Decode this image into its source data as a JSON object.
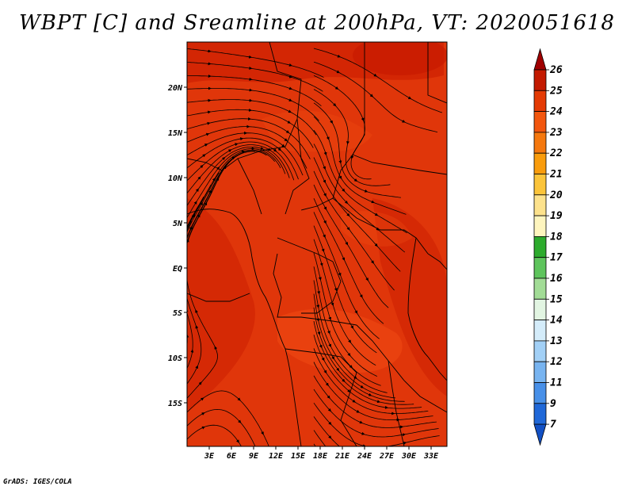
{
  "title": "WBPT [C] and Sreamline at 200hPa, VT: 2020051618",
  "credit": "GrADS: IGES/COLA",
  "map": {
    "lat_labels": [
      "20N",
      "15N",
      "10N",
      "5N",
      "EQ",
      "5S",
      "10S",
      "15S"
    ],
    "lon_labels": [
      "3E",
      "6E",
      "9E",
      "12E",
      "15E",
      "18E",
      "21E",
      "24E",
      "27E",
      "30E",
      "33E"
    ],
    "field_colors": {
      "base": "#e0360a",
      "warm": "#c81a00",
      "cool": "#ef4a12"
    }
  },
  "colorbar": {
    "labels": [
      "26",
      "25",
      "24",
      "23",
      "22",
      "21",
      "20",
      "19",
      "18",
      "17",
      "16",
      "15",
      "14",
      "13",
      "12",
      "11",
      "9",
      "7"
    ],
    "colors": [
      "#a00000",
      "#c31a00",
      "#e43a04",
      "#f2560e",
      "#f5780e",
      "#f99c0c",
      "#fbc43a",
      "#fde28c",
      "#fef5be",
      "#2dab2d",
      "#5ec45c",
      "#a2dc96",
      "#e2f5e2",
      "#d4ecfa",
      "#a2d0f6",
      "#78b4f0",
      "#4890e8",
      "#2068d8",
      "#1250c4"
    ]
  }
}
